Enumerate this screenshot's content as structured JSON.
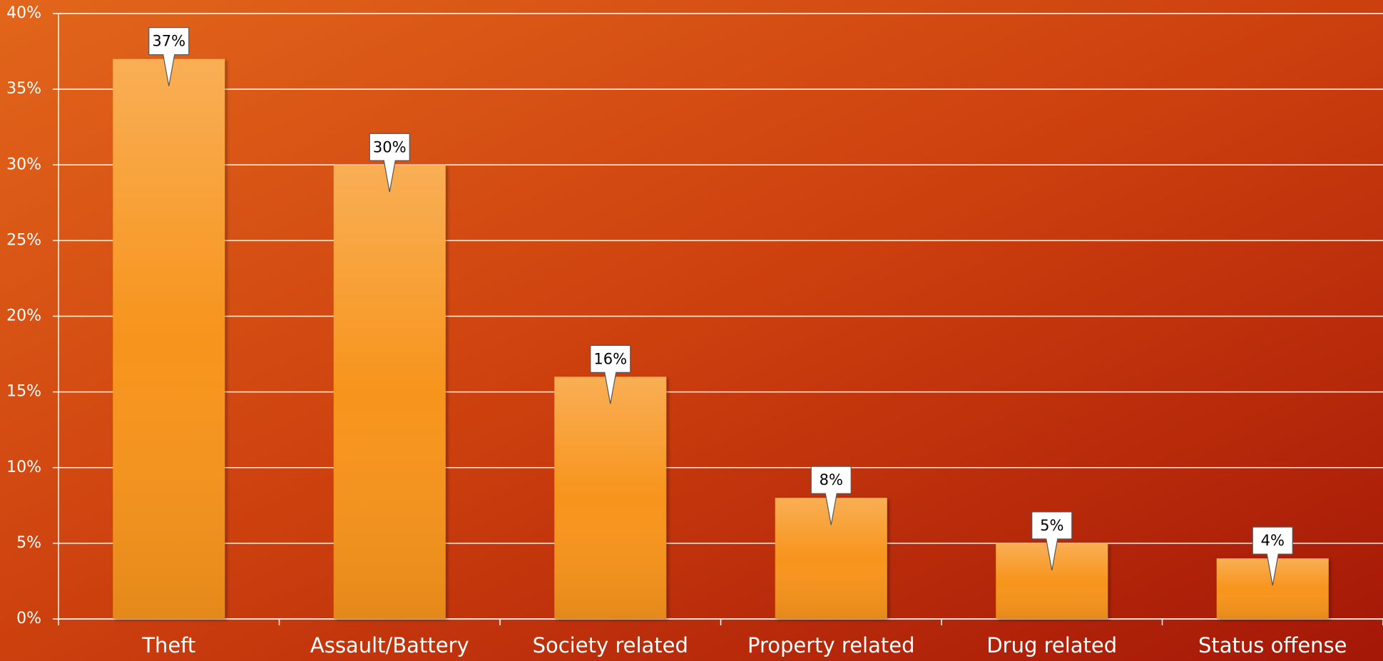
{
  "chart_data": {
    "type": "bar",
    "categories": [
      "Theft",
      "Assault/Battery",
      "Society related",
      "Property related",
      "Drug related",
      "Status offense"
    ],
    "values": [
      37,
      30,
      16,
      8,
      5,
      4
    ],
    "value_labels": [
      "37%",
      "30%",
      "16%",
      "8%",
      "5%",
      "4%"
    ],
    "color": "#f7941d",
    "ylim": [
      0,
      40
    ],
    "yticks": [
      {
        "value": 0,
        "label": "0%"
      },
      {
        "value": 5,
        "label": "5%"
      },
      {
        "value": 10,
        "label": "10%"
      },
      {
        "value": 15,
        "label": "15%"
      },
      {
        "value": 20,
        "label": "20%"
      },
      {
        "value": 25,
        "label": "25%"
      },
      {
        "value": 30,
        "label": "30%"
      },
      {
        "value": 35,
        "label": "35%"
      },
      {
        "value": 40,
        "label": "40%"
      }
    ],
    "grid": true
  }
}
